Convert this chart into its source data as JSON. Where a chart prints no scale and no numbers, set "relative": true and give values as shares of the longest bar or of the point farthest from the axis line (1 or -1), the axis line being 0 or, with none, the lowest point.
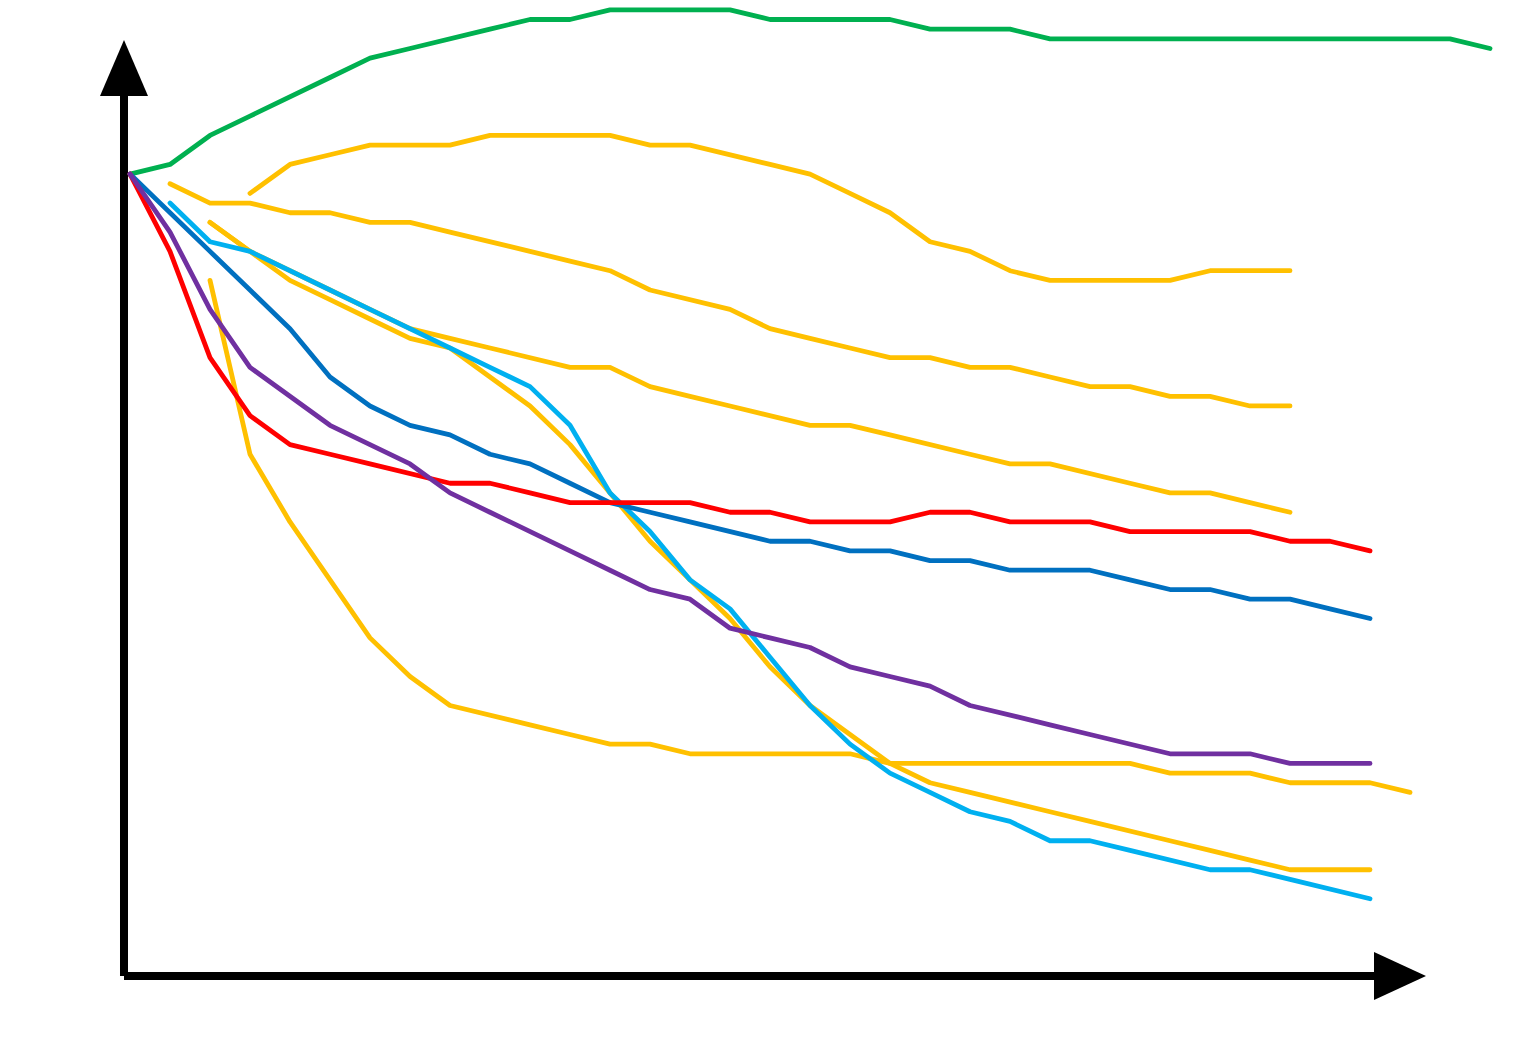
{
  "chart_data": {
    "type": "line",
    "relative": true,
    "categories": [
      null,
      null,
      null,
      null,
      null,
      null,
      null,
      null,
      null,
      null,
      null,
      null,
      null,
      null,
      null,
      null,
      null,
      null,
      null,
      null,
      null,
      null,
      null,
      null,
      null,
      null,
      null,
      null,
      null,
      null,
      null,
      null,
      null,
      null,
      null
    ],
    "series": [
      {
        "color": "#00b050",
        "values": [
          0.83,
          0.84,
          0.87,
          0.89,
          0.91,
          0.93,
          0.95,
          0.96,
          0.97,
          0.98,
          0.99,
          0.99,
          1.0,
          1.0,
          1.0,
          1.0,
          0.99,
          0.99,
          0.99,
          0.99,
          0.98,
          0.98,
          0.98,
          0.97,
          0.97,
          0.97,
          0.97,
          0.97,
          0.97,
          0.97,
          0.97,
          0.97,
          0.97,
          0.97,
          0.96
        ]
      },
      {
        "color": "#ffc000",
        "values": [
          null,
          null,
          null,
          0.81,
          0.84,
          0.85,
          0.86,
          0.86,
          0.86,
          0.87,
          0.87,
          0.87,
          0.87,
          0.86,
          0.86,
          0.85,
          0.84,
          0.83,
          0.81,
          0.79,
          0.76,
          0.75,
          0.73,
          0.72,
          0.72,
          0.72,
          0.72,
          0.73,
          0.73,
          0.73,
          null,
          null,
          null,
          null,
          null
        ]
      },
      {
        "color": "#ffc000",
        "values": [
          null,
          0.82,
          0.8,
          0.8,
          0.79,
          0.79,
          0.78,
          0.78,
          0.77,
          0.76,
          0.75,
          0.74,
          0.73,
          0.71,
          0.7,
          0.69,
          0.67,
          0.66,
          0.65,
          0.64,
          0.64,
          0.63,
          0.63,
          0.62,
          0.61,
          0.61,
          0.6,
          0.6,
          0.59,
          0.59,
          null,
          null,
          null,
          null,
          null
        ]
      },
      {
        "color": "#ffc000",
        "values": [
          null,
          null,
          0.78,
          0.75,
          0.73,
          0.71,
          0.69,
          0.67,
          0.66,
          0.65,
          0.64,
          0.63,
          0.63,
          0.61,
          0.6,
          0.59,
          0.58,
          0.57,
          0.57,
          0.56,
          0.55,
          0.54,
          0.53,
          0.53,
          0.52,
          0.51,
          0.5,
          0.5,
          0.49,
          0.48,
          null,
          null,
          null,
          null,
          null
        ]
      },
      {
        "color": "#ffc000",
        "values": [
          null,
          null,
          0.72,
          0.54,
          0.47,
          0.41,
          0.35,
          0.31,
          0.28,
          0.27,
          0.26,
          0.25,
          0.24,
          0.24,
          0.23,
          0.23,
          0.23,
          0.23,
          0.23,
          0.22,
          0.22,
          0.22,
          0.22,
          0.22,
          0.22,
          0.22,
          0.21,
          0.21,
          0.21,
          0.2,
          0.2,
          0.2,
          0.19,
          null,
          null
        ]
      },
      {
        "color": "#ffc000",
        "values": [
          null,
          null,
          0.78,
          0.75,
          0.72,
          0.7,
          0.68,
          0.66,
          0.65,
          0.62,
          0.59,
          0.55,
          0.5,
          0.45,
          0.41,
          0.37,
          0.32,
          0.28,
          0.25,
          0.22,
          0.2,
          0.19,
          0.18,
          0.17,
          0.16,
          0.15,
          0.14,
          0.13,
          0.12,
          0.11,
          0.11,
          0.11,
          null,
          null,
          null
        ]
      },
      {
        "color": "#00b0f0",
        "values": [
          null,
          0.8,
          0.76,
          0.75,
          0.73,
          0.71,
          0.69,
          0.67,
          0.65,
          0.63,
          0.61,
          0.57,
          0.5,
          0.46,
          0.41,
          0.38,
          0.33,
          0.28,
          0.24,
          0.21,
          0.19,
          0.17,
          0.16,
          0.14,
          0.14,
          0.13,
          0.12,
          0.11,
          0.11,
          0.1,
          0.09,
          0.08,
          null,
          null,
          null
        ]
      },
      {
        "color": "#0070c0",
        "values": [
          0.83,
          0.79,
          0.75,
          0.71,
          0.67,
          0.62,
          0.59,
          0.57,
          0.56,
          0.54,
          0.53,
          0.51,
          0.49,
          0.48,
          0.47,
          0.46,
          0.45,
          0.45,
          0.44,
          0.44,
          0.43,
          0.43,
          0.42,
          0.42,
          0.42,
          0.41,
          0.4,
          0.4,
          0.39,
          0.39,
          0.38,
          0.37,
          null,
          null,
          null
        ]
      },
      {
        "color": "#ff0000",
        "values": [
          0.83,
          0.75,
          0.64,
          0.58,
          0.55,
          0.54,
          0.53,
          0.52,
          0.51,
          0.51,
          0.5,
          0.49,
          0.49,
          0.49,
          0.49,
          0.48,
          0.48,
          0.47,
          0.47,
          0.47,
          0.48,
          0.48,
          0.47,
          0.47,
          0.47,
          0.46,
          0.46,
          0.46,
          0.46,
          0.45,
          0.45,
          0.44,
          null,
          null,
          null
        ]
      },
      {
        "color": "#7030a0",
        "values": [
          0.83,
          0.77,
          0.69,
          0.63,
          0.6,
          0.57,
          0.55,
          0.53,
          0.5,
          0.48,
          0.46,
          0.44,
          0.42,
          0.4,
          0.39,
          0.36,
          0.35,
          0.34,
          0.32,
          0.31,
          0.3,
          0.28,
          0.27,
          0.26,
          0.25,
          0.24,
          0.23,
          0.23,
          0.23,
          0.22,
          0.22,
          0.22,
          null,
          null,
          null
        ]
      }
    ]
  }
}
